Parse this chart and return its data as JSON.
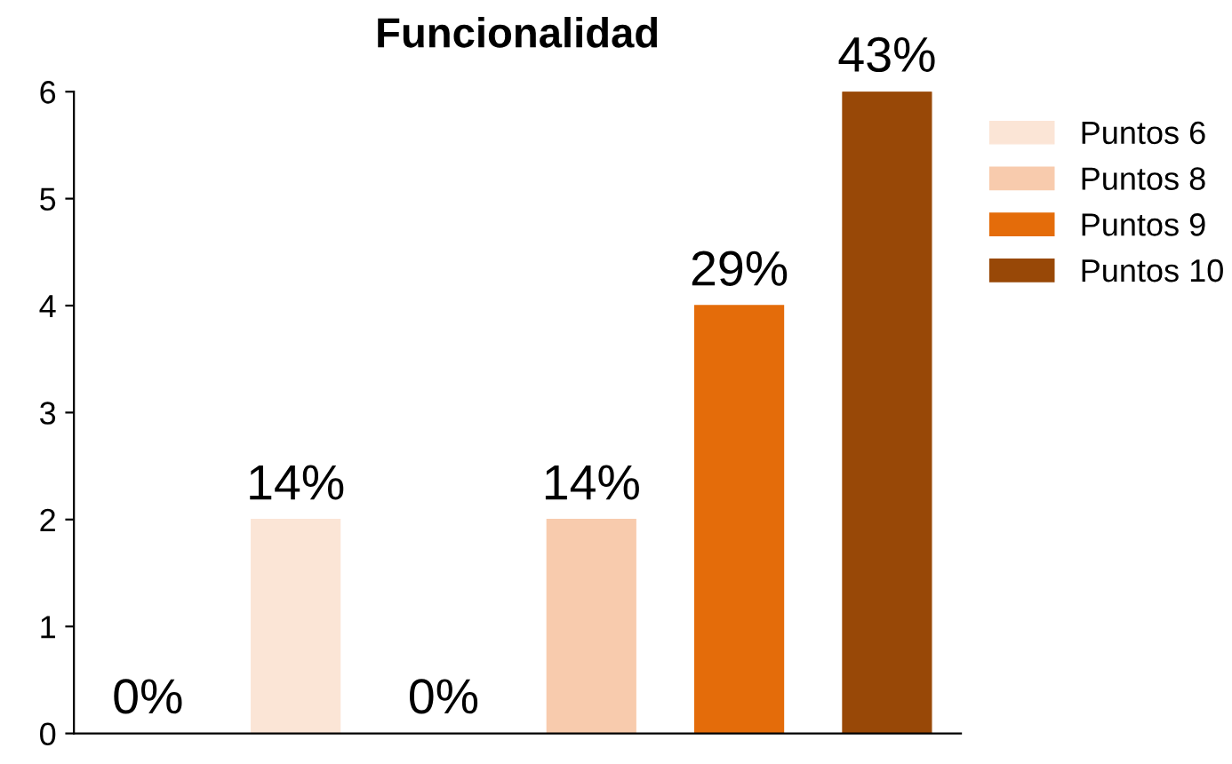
{
  "chart_data": {
    "type": "bar",
    "title": "Funcionalidad",
    "categories": [
      null,
      null,
      null,
      null,
      null,
      null
    ],
    "series": [
      {
        "color": "#b5651d",
        "values": [
          0,
          null,
          0,
          null,
          null,
          null
        ]
      },
      {
        "name": "Puntos 6",
        "color": "#fbe5d6",
        "values": [
          null,
          2,
          null,
          null,
          null,
          null
        ]
      },
      {
        "name": "Puntos 8",
        "color": "#f8cbad",
        "values": [
          null,
          null,
          null,
          2,
          null,
          null
        ]
      },
      {
        "name": "Puntos 9",
        "color": "#e46c0a",
        "values": [
          null,
          null,
          null,
          null,
          4,
          null
        ]
      },
      {
        "name": "Puntos 10",
        "color": "#984807",
        "values": [
          null,
          null,
          null,
          null,
          null,
          6
        ]
      }
    ],
    "annotations": [
      {
        "text": "0%",
        "y": 0
      },
      {
        "text": "14%",
        "y": 2
      },
      {
        "text": "0%",
        "y": 0
      },
      {
        "text": "14%",
        "y": 2
      },
      {
        "text": "29%",
        "y": 4
      },
      {
        "text": "43%",
        "y": 6
      }
    ],
    "ylim": [
      0,
      6
    ],
    "yticks": [
      0,
      1,
      2,
      3,
      4,
      5,
      6
    ],
    "grid": false,
    "legend": "right"
  }
}
